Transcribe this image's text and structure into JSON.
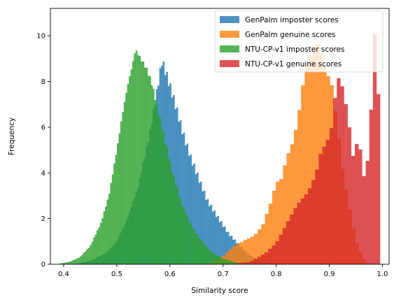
{
  "chart_data": {
    "type": "histogram",
    "xlabel": "Similarity score",
    "ylabel": "Frequency",
    "xlim": [
      0.375,
      1.0125
    ],
    "ylim": [
      0,
      11.2
    ],
    "xticks": [
      0.4,
      0.5,
      0.6,
      0.7,
      0.8,
      0.9,
      1.0
    ],
    "xtick_labels": [
      "0.4",
      "0.5",
      "0.6",
      "0.7",
      "0.8",
      "0.9",
      "1.0"
    ],
    "yticks": [
      0,
      2,
      4,
      6,
      8,
      10
    ],
    "ytick_labels": [
      "0",
      "2",
      "4",
      "6",
      "8",
      "10"
    ],
    "grid": false,
    "legend_position": "top-right",
    "series": [
      {
        "name": "GenPalm imposter scores",
        "color": "#1f77b4",
        "opacity": 0.8,
        "peak_x": 0.585,
        "peak_y": 8.9,
        "points": [
          [
            0.42,
            0
          ],
          [
            0.45,
            0.15
          ],
          [
            0.48,
            0.5
          ],
          [
            0.5,
            1.0
          ],
          [
            0.52,
            2.0
          ],
          [
            0.54,
            3.4
          ],
          [
            0.56,
            5.5
          ],
          [
            0.575,
            7.5
          ],
          [
            0.585,
            8.9
          ],
          [
            0.595,
            8.2
          ],
          [
            0.61,
            7.0
          ],
          [
            0.625,
            5.7
          ],
          [
            0.64,
            4.6
          ],
          [
            0.655,
            3.7
          ],
          [
            0.67,
            2.8
          ],
          [
            0.69,
            2.05
          ],
          [
            0.71,
            1.35
          ],
          [
            0.73,
            0.85
          ],
          [
            0.75,
            0.4
          ],
          [
            0.77,
            0.15
          ],
          [
            0.79,
            0.04
          ],
          [
            0.81,
            0
          ]
        ]
      },
      {
        "name": "GenPalm genuine scores",
        "color": "#ff7f0e",
        "opacity": 0.8,
        "peak_x": 0.875,
        "peak_y": 10.1,
        "points": [
          [
            0.67,
            0
          ],
          [
            0.7,
            0.35
          ],
          [
            0.72,
            0.8
          ],
          [
            0.74,
            1.1
          ],
          [
            0.76,
            1.3
          ],
          [
            0.775,
            1.7
          ],
          [
            0.79,
            2.6
          ],
          [
            0.8,
            3.4
          ],
          [
            0.81,
            3.6
          ],
          [
            0.82,
            4.6
          ],
          [
            0.83,
            5.3
          ],
          [
            0.84,
            6.4
          ],
          [
            0.85,
            8.2
          ],
          [
            0.86,
            9.5
          ],
          [
            0.87,
            9.7
          ],
          [
            0.875,
            10.1
          ],
          [
            0.885,
            9.2
          ],
          [
            0.895,
            8.2
          ],
          [
            0.905,
            7.5
          ],
          [
            0.915,
            5.8
          ],
          [
            0.925,
            4.0
          ],
          [
            0.935,
            2.8
          ],
          [
            0.945,
            1.6
          ],
          [
            0.955,
            0.7
          ],
          [
            0.965,
            0.25
          ],
          [
            0.975,
            0
          ]
        ]
      },
      {
        "name": "NTU-CP-v1 imposter scores",
        "color": "#2ca02c",
        "opacity": 0.8,
        "peak_x": 0.535,
        "peak_y": 9.4,
        "points": [
          [
            0.385,
            0
          ],
          [
            0.41,
            0.1
          ],
          [
            0.43,
            0.3
          ],
          [
            0.45,
            0.8
          ],
          [
            0.47,
            1.8
          ],
          [
            0.485,
            3.0
          ],
          [
            0.5,
            5.0
          ],
          [
            0.51,
            6.5
          ],
          [
            0.52,
            7.8
          ],
          [
            0.53,
            8.8
          ],
          [
            0.535,
            9.4
          ],
          [
            0.545,
            9.0
          ],
          [
            0.555,
            8.6
          ],
          [
            0.565,
            8.0
          ],
          [
            0.575,
            7.0
          ],
          [
            0.59,
            5.5
          ],
          [
            0.605,
            4.0
          ],
          [
            0.62,
            2.8
          ],
          [
            0.64,
            1.7
          ],
          [
            0.66,
            1.0
          ],
          [
            0.68,
            0.5
          ],
          [
            0.7,
            0.25
          ],
          [
            0.72,
            0.1
          ],
          [
            0.74,
            0
          ]
        ]
      },
      {
        "name": "NTU-CP-v1 genuine scores",
        "color": "#d62728",
        "opacity": 0.8,
        "peak_x": 0.985,
        "peak_y": 10.7,
        "points": [
          [
            0.71,
            0
          ],
          [
            0.75,
            0.1
          ],
          [
            0.78,
            0.5
          ],
          [
            0.8,
            0.9
          ],
          [
            0.82,
            1.7
          ],
          [
            0.84,
            2.6
          ],
          [
            0.86,
            3.3
          ],
          [
            0.875,
            4.2
          ],
          [
            0.885,
            5.2
          ],
          [
            0.895,
            5.4
          ],
          [
            0.905,
            6.0
          ],
          [
            0.915,
            8.0
          ],
          [
            0.925,
            7.4
          ],
          [
            0.935,
            6.2
          ],
          [
            0.945,
            4.5
          ],
          [
            0.955,
            5.5
          ],
          [
            0.965,
            3.9
          ],
          [
            0.975,
            5.0
          ],
          [
            0.985,
            10.7
          ],
          [
            0.992,
            8.4
          ],
          [
            0.995,
            0
          ]
        ]
      }
    ]
  }
}
